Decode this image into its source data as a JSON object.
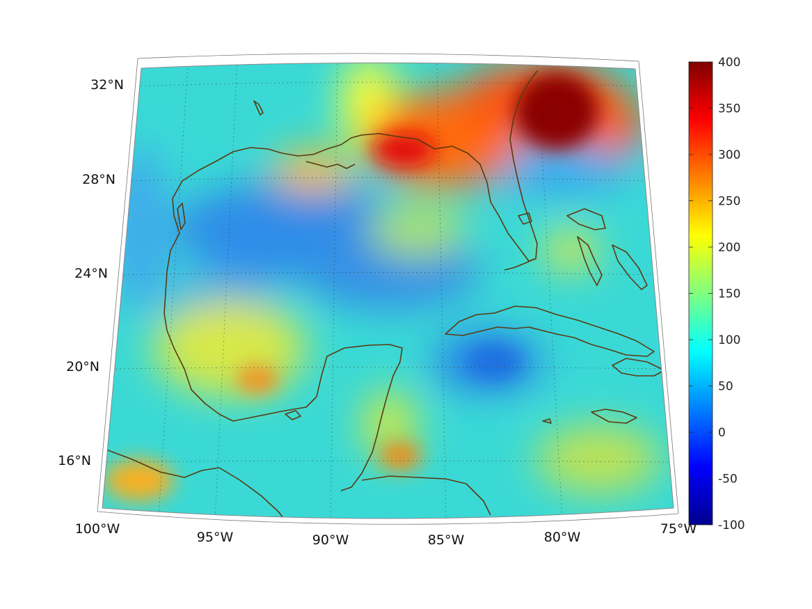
{
  "map": {
    "lat_labels": [
      "32°N",
      "28°N",
      "24°N",
      "20°N",
      "16°N"
    ],
    "lon_labels": [
      "100°W",
      "95°W",
      "90°W",
      "85°W",
      "80°W",
      "75°W"
    ]
  },
  "colorbar": {
    "min": -100,
    "max": 400,
    "tick_labels": [
      "400",
      "350",
      "300",
      "250",
      "200",
      "150",
      "100",
      "50",
      "0",
      "-50",
      "-100"
    ],
    "colormap": "jet"
  }
}
